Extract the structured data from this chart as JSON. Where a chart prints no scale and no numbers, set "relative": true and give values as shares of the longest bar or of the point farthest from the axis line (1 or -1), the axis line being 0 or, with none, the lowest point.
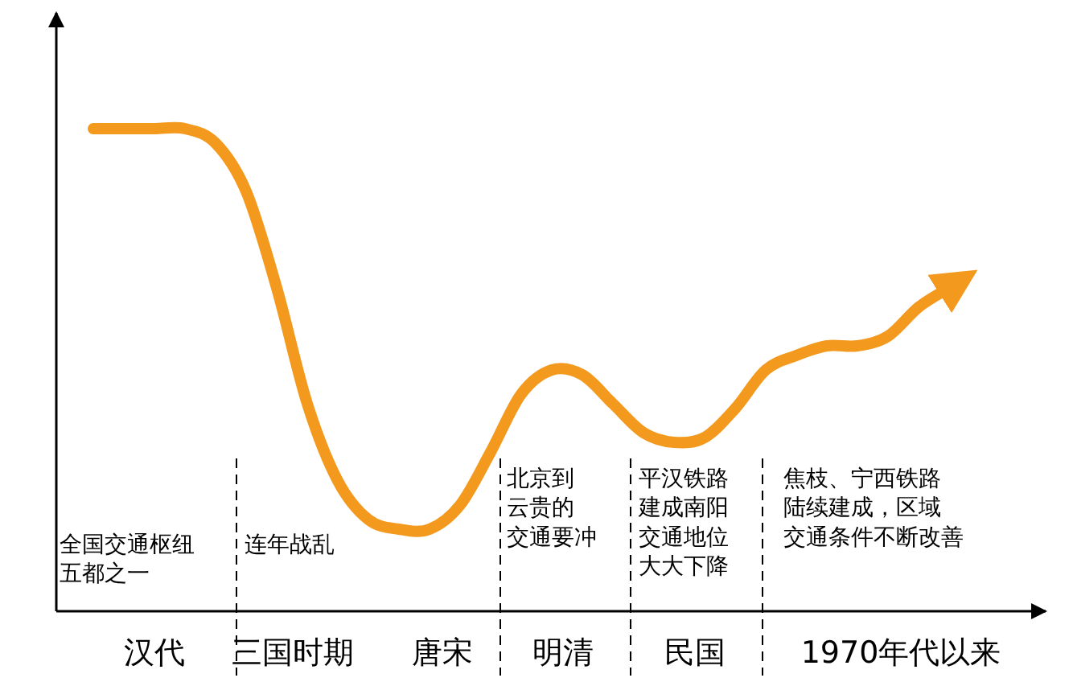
{
  "chart_data": {
    "type": "line",
    "relative": true,
    "categories": [
      null,
      null,
      null,
      null,
      null,
      null,
      null,
      null,
      null,
      null,
      null,
      null,
      null,
      null,
      null,
      null,
      null,
      null,
      null,
      null,
      null,
      null,
      null,
      null,
      null,
      null,
      null,
      null,
      null
    ],
    "values": [
      1.0,
      1.0,
      1.0,
      1.0,
      0.97,
      0.87,
      0.67,
      0.43,
      0.27,
      0.19,
      0.17,
      0.17,
      0.22,
      0.33,
      0.45,
      0.5,
      0.49,
      0.43,
      0.37,
      0.35,
      0.36,
      0.42,
      0.5,
      0.53,
      0.55,
      0.55,
      0.57,
      0.63,
      0.67
    ],
    "color": "#f39a1e",
    "annotations": [
      "汉代",
      "三国时期",
      "唐宋",
      "明清",
      "民国",
      "1970年代以来",
      "全国交通枢纽五都之一",
      "连年战乱",
      "北京到云贵的交通要冲",
      "平汉铁路建成南阳交通地位大大下降",
      "焦枝、宁西铁路陆续建成，区域交通条件不断改善"
    ]
  }
}
